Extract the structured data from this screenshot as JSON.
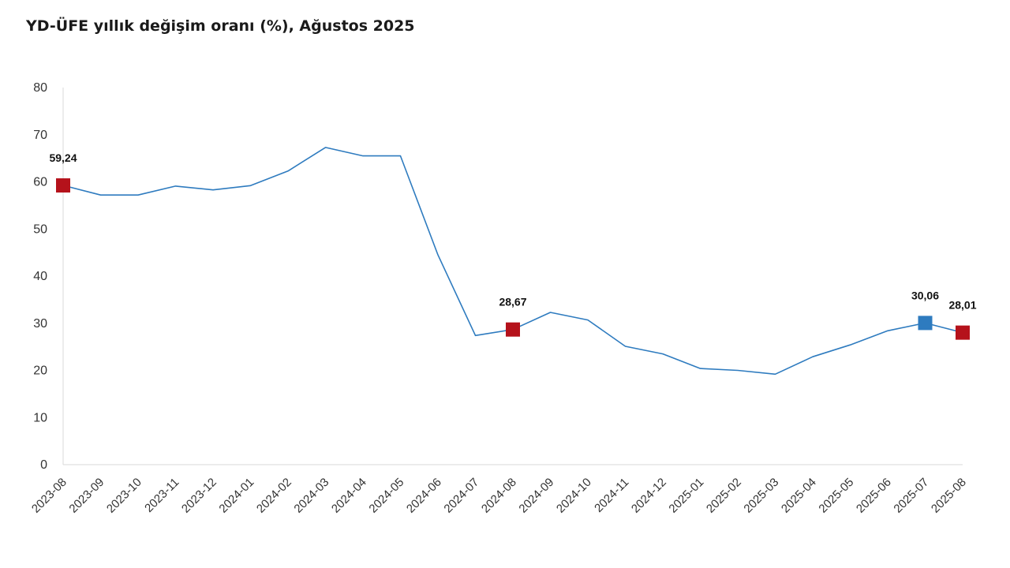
{
  "chart_data": {
    "type": "line",
    "title": "YD-ÜFE yıllık değişim oranı (%), Ağustos 2025",
    "xlabel": "",
    "ylabel": "",
    "ylim": [
      0,
      80
    ],
    "yticks": [
      "0",
      "10",
      "20",
      "30",
      "40",
      "50",
      "60",
      "70",
      "80"
    ],
    "grid": false,
    "categories": [
      "2023-08",
      "2023-09",
      "2023-10",
      "2023-11",
      "2023-12",
      "2024-01",
      "2024-02",
      "2024-03",
      "2024-04",
      "2024-05",
      "2024-06",
      "2024-07",
      "2024-08",
      "2024-09",
      "2024-10",
      "2024-11",
      "2024-12",
      "2025-01",
      "2025-02",
      "2025-03",
      "2025-04",
      "2025-05",
      "2025-06",
      "2025-07",
      "2025-08"
    ],
    "series": [
      {
        "values": [
          59.24,
          57.2,
          57.2,
          59.1,
          58.3,
          59.2,
          62.3,
          67.3,
          65.5,
          65.5,
          44.5,
          27.4,
          28.67,
          32.3,
          30.7,
          25.1,
          23.5,
          20.4,
          20.0,
          19.2,
          22.9,
          25.4,
          28.4,
          30.06,
          28.01
        ],
        "color": "#2e7bbf"
      }
    ],
    "highlights": [
      {
        "index": 0,
        "label": "59,24",
        "color": "#b5121b"
      },
      {
        "index": 12,
        "label": "28,67",
        "color": "#b5121b"
      },
      {
        "index": 23,
        "label": "30,06",
        "color": "#2e7bbf"
      },
      {
        "index": 24,
        "label": "28,01",
        "color": "#b5121b"
      }
    ]
  }
}
